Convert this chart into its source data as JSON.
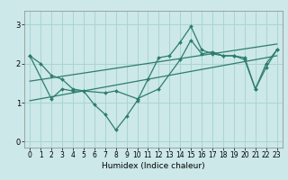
{
  "xlabel": "Humidex (Indice chaleur)",
  "ylabel": "",
  "bg_color": "#cce8e8",
  "line_color": "#2d7d6e",
  "grid_color": "#aad4d4",
  "xlim": [
    -0.5,
    23.5
  ],
  "ylim": [
    -0.15,
    3.35
  ],
  "xticks": [
    0,
    1,
    2,
    3,
    4,
    5,
    6,
    7,
    8,
    9,
    10,
    11,
    12,
    13,
    14,
    15,
    16,
    17,
    18,
    19,
    20,
    21,
    22,
    23
  ],
  "yticks": [
    0,
    1,
    2,
    3
  ],
  "series": [
    {
      "x": [
        0,
        1,
        2,
        3,
        4,
        5,
        6,
        7,
        8,
        9,
        10,
        11,
        12,
        13,
        14,
        15,
        16,
        17,
        18,
        19,
        20,
        21,
        22,
        23
      ],
      "y": [
        2.2,
        2.0,
        1.7,
        1.6,
        1.35,
        1.3,
        0.95,
        0.7,
        0.3,
        0.65,
        1.05,
        1.6,
        2.15,
        2.2,
        2.55,
        2.95,
        2.35,
        2.25,
        2.2,
        2.2,
        2.15,
        1.35,
        1.9,
        2.35
      ],
      "no_markers": false
    },
    {
      "x": [
        0,
        2,
        3,
        4,
        5,
        7,
        8,
        10,
        12,
        14,
        15,
        16,
        17,
        18,
        19,
        20,
        21,
        22,
        23
      ],
      "y": [
        2.2,
        1.1,
        1.35,
        1.3,
        1.3,
        1.25,
        1.3,
        1.1,
        1.35,
        2.1,
        2.6,
        2.25,
        2.3,
        2.2,
        2.2,
        2.1,
        1.35,
        2.0,
        2.35
      ],
      "no_markers": false
    },
    {
      "x": [
        0,
        23
      ],
      "y": [
        1.05,
        2.2
      ],
      "no_markers": true
    },
    {
      "x": [
        0,
        23
      ],
      "y": [
        1.55,
        2.5
      ],
      "no_markers": true
    }
  ]
}
